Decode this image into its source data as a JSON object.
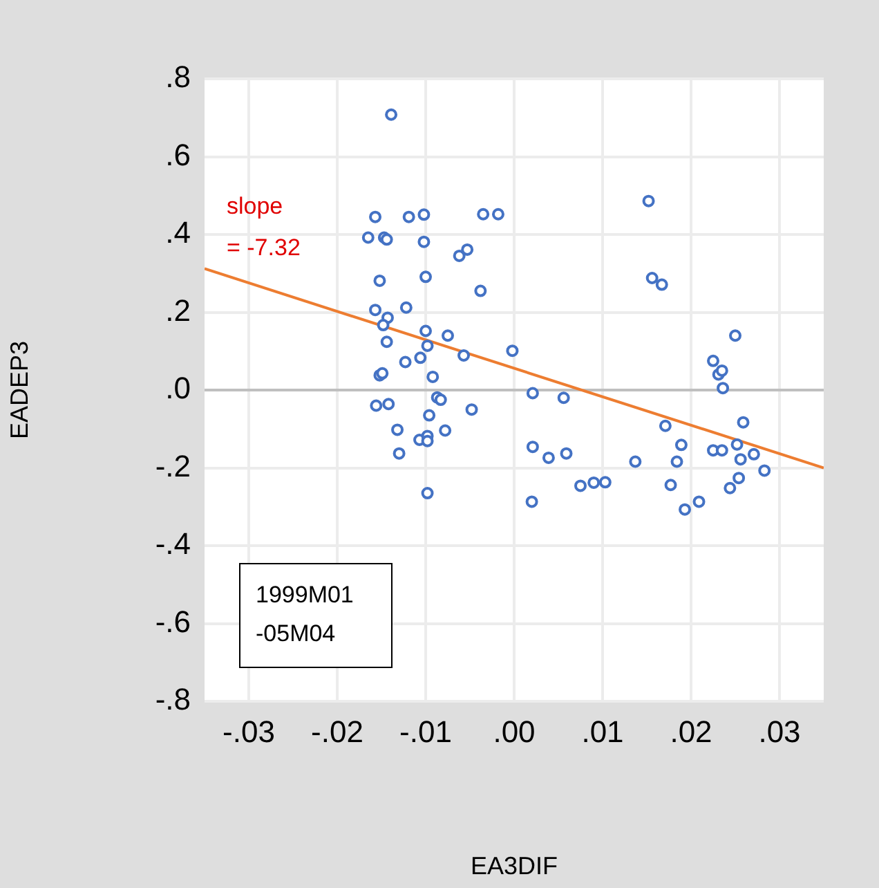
{
  "chart_data": {
    "type": "scatter",
    "xlabel": "EA3DIF",
    "ylabel": "EADEP3",
    "x": [
      -0.0139,
      -0.0157,
      -0.0119,
      -0.0102,
      -0.0035,
      -0.0018,
      -0.0165,
      -0.0147,
      -0.0144,
      -0.0102,
      -0.0062,
      -0.0053,
      -0.0152,
      -0.01,
      -0.0038,
      -0.0157,
      -0.0122,
      -0.0143,
      -0.0148,
      -0.01,
      -0.0075,
      -0.0144,
      -0.0098,
      -0.0002,
      -0.0057,
      -0.0123,
      -0.0106,
      -0.0152,
      -0.0149,
      -0.0092,
      -0.0156,
      -0.0142,
      -0.0087,
      -0.0083,
      -0.0048,
      -0.0096,
      -0.0132,
      -0.0078,
      -0.0107,
      -0.0098,
      -0.0098,
      -0.013,
      -0.0098,
      0.0152,
      0.0156,
      0.0167,
      0.025,
      0.0225,
      0.0231,
      0.0235,
      0.0236,
      0.0021,
      0.0056,
      0.0259,
      0.0171,
      0.0021,
      0.0189,
      0.0252,
      0.0039,
      0.0059,
      0.0225,
      0.0235,
      0.0256,
      0.0271,
      0.0137,
      0.0184,
      0.0283,
      0.0254,
      0.0075,
      0.009,
      0.0103,
      0.0177,
      0.0244,
      0.002,
      0.0209,
      0.0193
    ],
    "series": [
      {
        "type": "scatter",
        "color": "#4472c4",
        "marker": "circle",
        "values": [
          0.708,
          0.445,
          0.445,
          0.451,
          0.452,
          0.452,
          0.392,
          0.392,
          0.387,
          0.381,
          0.345,
          0.361,
          0.281,
          0.291,
          0.255,
          0.206,
          0.212,
          0.186,
          0.167,
          0.152,
          0.14,
          0.124,
          0.114,
          0.101,
          0.089,
          0.072,
          0.083,
          0.038,
          0.043,
          0.034,
          -0.04,
          -0.036,
          -0.019,
          -0.025,
          -0.05,
          -0.065,
          -0.102,
          -0.104,
          -0.128,
          -0.118,
          -0.131,
          -0.163,
          -0.265,
          0.486,
          0.288,
          0.271,
          0.14,
          0.075,
          0.04,
          0.05,
          0.005,
          -0.008,
          -0.02,
          -0.083,
          -0.092,
          -0.146,
          -0.141,
          -0.14,
          -0.174,
          -0.163,
          -0.155,
          -0.155,
          -0.178,
          -0.165,
          -0.184,
          -0.184,
          -0.207,
          -0.226,
          -0.246,
          -0.238,
          -0.237,
          -0.244,
          -0.252,
          -0.287,
          -0.287,
          -0.307
        ]
      },
      {
        "type": "line",
        "color": "#ed7d31",
        "marker": "none",
        "x": [
          -0.035,
          0.035
        ],
        "values": [
          0.312,
          -0.2
        ]
      }
    ],
    "xlim": [
      -0.035,
      0.035
    ],
    "xticks": [
      {
        "value": -0.03,
        "label": "-.03"
      },
      {
        "value": -0.02,
        "label": "-.02"
      },
      {
        "value": -0.01,
        "label": "-.01"
      },
      {
        "value": 0,
        "label": ".00"
      },
      {
        "value": 0.01,
        "label": ".01"
      },
      {
        "value": 0.02,
        "label": ".02"
      },
      {
        "value": 0.03,
        "label": ".03"
      }
    ],
    "ylim": [
      -0.8,
      0.8
    ],
    "yticks": [
      {
        "value": -0.8,
        "label": "-.8"
      },
      {
        "value": -0.6,
        "label": "-.6"
      },
      {
        "value": -0.4,
        "label": "-.4"
      },
      {
        "value": -0.2,
        "label": "-.2"
      },
      {
        "value": 0,
        "label": ".0"
      },
      {
        "value": 0.2,
        "label": ".2"
      },
      {
        "value": 0.4,
        "label": ".4"
      },
      {
        "value": 0.6,
        "label": ".6"
      },
      {
        "value": 0.8,
        "label": ".8"
      }
    ],
    "grid": true,
    "legend": false,
    "annotations": [
      "slope\n= -7.32",
      "1999M01\n-05M04"
    ]
  }
}
